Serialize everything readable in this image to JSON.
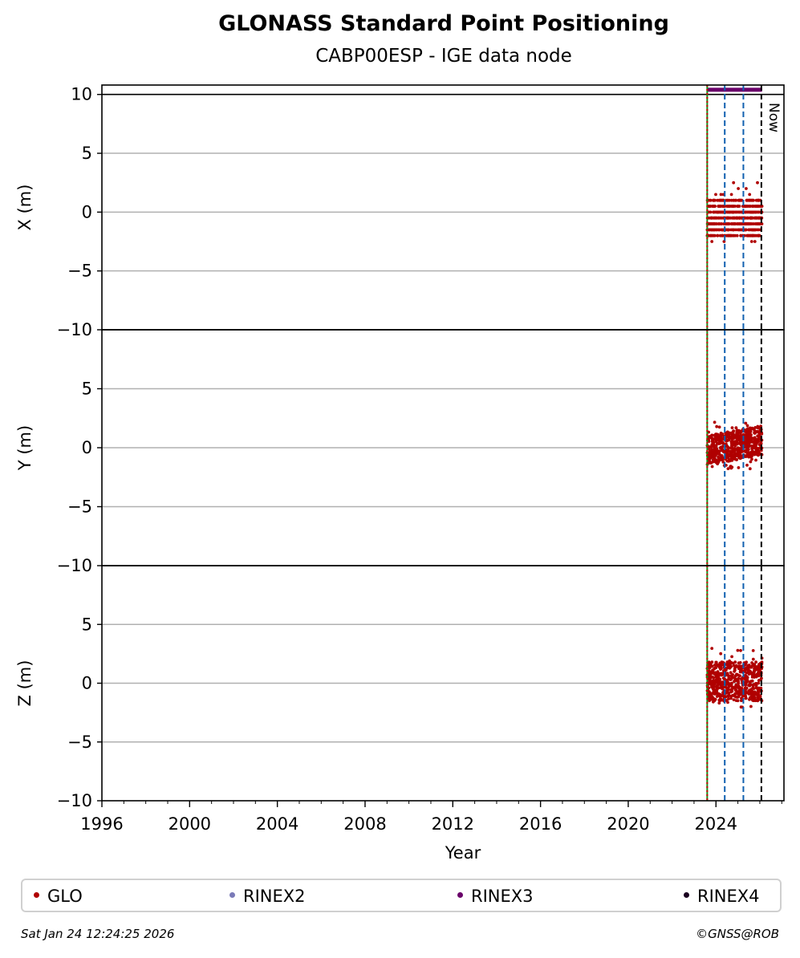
{
  "chart_data": {
    "type": "scatter",
    "title": "GLONASS Standard Point Positioning",
    "subtitle": "CABP00ESP - IGE data node",
    "xlabel": "Year",
    "xlim": [
      1996,
      2027.1
    ],
    "xticks": [
      1996,
      2000,
      2004,
      2008,
      2012,
      2016,
      2020,
      2024
    ],
    "panels": [
      {
        "ylabel": "X (m)",
        "ylim": [
          -10,
          10.8
        ],
        "yticks": [
          -10,
          -5,
          0,
          5,
          10
        ],
        "hlines": [
          10
        ],
        "series": [
          {
            "name": "GLO",
            "color": "#b00000",
            "x_range": [
              2023.6,
              2026.1
            ],
            "y_spread": [
              -3.0,
              2.5
            ],
            "typical": [
              -2.0,
              1.0
            ]
          }
        ]
      },
      {
        "ylabel": "Y (m)",
        "ylim": [
          -10,
          10
        ],
        "yticks": [
          -10,
          -5,
          0,
          5
        ],
        "hlines": [],
        "series": [
          {
            "name": "GLO",
            "color": "#b00000",
            "x_range": [
              2023.6,
              2026.1
            ],
            "y_spread": [
              -1.8,
              2.2
            ],
            "typical": [
              -1.0,
              1.5
            ]
          }
        ]
      },
      {
        "ylabel": "Z (m)",
        "ylim": [
          -10,
          10
        ],
        "yticks": [
          -10,
          -5,
          0,
          5
        ],
        "hlines": [],
        "series": [
          {
            "name": "GLO",
            "color": "#b00000",
            "x_range": [
              2023.6,
              2026.1
            ],
            "y_spread": [
              -2.3,
              3.2
            ],
            "typical": [
              -1.5,
              1.8
            ]
          }
        ]
      }
    ],
    "rinex3_bar": {
      "x_range": [
        2023.6,
        2026.1
      ],
      "y": 10.4,
      "color": "#6a006a"
    },
    "vlines": [
      {
        "x": 2023.6,
        "color": "#1a8c1a",
        "style": "solid"
      },
      {
        "x": 2023.6,
        "color": "#cc0000",
        "style": "dotted"
      },
      {
        "x": 2024.4,
        "color": "#1060b0",
        "style": "dashed"
      },
      {
        "x": 2025.25,
        "color": "#1060b0",
        "style": "dashed"
      },
      {
        "x": 2026.07,
        "color": "#000000",
        "style": "dashed",
        "label": "Now"
      }
    ],
    "legend": [
      {
        "name": "GLO",
        "color": "#b00000"
      },
      {
        "name": "RINEX2",
        "color": "#7a7ab8"
      },
      {
        "name": "RINEX3",
        "color": "#6a006a"
      },
      {
        "name": "RINEX4",
        "color": "#1a0020"
      }
    ]
  },
  "footer": {
    "timestamp": "Sat Jan 24 12:24:25 2026",
    "credit": "©GNSS@ROB"
  }
}
